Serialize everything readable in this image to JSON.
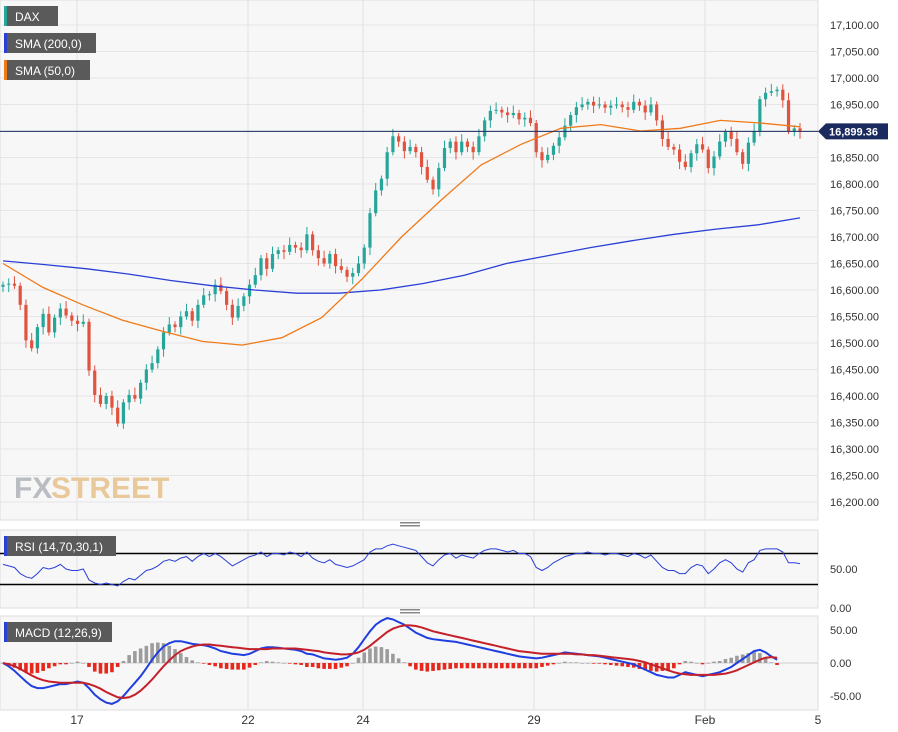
{
  "colors": {
    "bull": "#26a69a",
    "bear": "#e0533f",
    "sma200": "#2a3fd6",
    "sma50": "#f07a18",
    "rsi": "#2a3fd6",
    "macd_line": "#1f3fe0",
    "signal_line": "#c4202a",
    "hist_pos": "#9c9c9c",
    "hist_neg": "#e8261a",
    "last_price_badge": "#1b2a5e",
    "legend_bg": "#5a5a5a"
  },
  "watermark": {
    "fx": "FX",
    "street": "STREET"
  },
  "legends": {
    "price": "DAX",
    "sma200": "SMA (200,0)",
    "sma50": "SMA (50,0)",
    "rsi": "RSI (14,70,30,1)",
    "macd": "MACD (12,26,9)"
  },
  "x_labels": [
    "17",
    "22",
    "24",
    "29",
    "Feb",
    "5"
  ],
  "chart_data": [
    {
      "type": "candlestick",
      "ylim": [
        16150,
        17150
      ],
      "yticks": [
        "17,100.00",
        "17,050.00",
        "17,000.00",
        "16,950.00",
        "16,900.00",
        "16,850.00",
        "16,800.00",
        "16,750.00",
        "16,700.00",
        "16,650.00",
        "16,600.00",
        "16,550.00",
        "16,500.00",
        "16,450.00",
        "16,400.00",
        "16,350.00",
        "16,300.00",
        "16,250.00",
        "16,200.00"
      ],
      "ytick_values": [
        17100,
        17050,
        17000,
        16950,
        16900,
        16850,
        16800,
        16750,
        16700,
        16650,
        16600,
        16550,
        16500,
        16450,
        16400,
        16350,
        16300,
        16250,
        16200
      ],
      "last_price": 16899.36,
      "last_price_label": "16,899.36",
      "close": [
        16610,
        16612,
        16608,
        16572,
        16505,
        16490,
        16530,
        16555,
        16520,
        16548,
        16565,
        16552,
        16542,
        16536,
        16540,
        16448,
        16402,
        16385,
        16400,
        16378,
        16348,
        16388,
        16402,
        16395,
        16425,
        16450,
        16462,
        16488,
        16520,
        16535,
        16530,
        16550,
        16560,
        16542,
        16572,
        16590,
        16592,
        16610,
        16598,
        16572,
        16548,
        16570,
        16588,
        16610,
        16628,
        16660,
        16640,
        16668,
        16675,
        16672,
        16685,
        16680,
        16675,
        16705,
        16675,
        16660,
        16650,
        16668,
        16645,
        16638,
        16625,
        16632,
        16650,
        16680,
        16745,
        16788,
        16810,
        16860,
        16890,
        16880,
        16862,
        16870,
        16860,
        16832,
        16808,
        16790,
        16830,
        16868,
        16880,
        16860,
        16880,
        16870,
        16860,
        16890,
        16920,
        16938,
        16940,
        16935,
        16930,
        16934,
        16922,
        16925,
        16915,
        16860,
        16845,
        16855,
        16872,
        16888,
        16910,
        16930,
        16945,
        16950,
        16955,
        16948,
        16950,
        16944,
        16948,
        16950,
        16945,
        16940,
        16955,
        16948,
        16935,
        16950,
        16920,
        16885,
        16870,
        16865,
        16842,
        16832,
        16858,
        16875,
        16865,
        16830,
        16852,
        16880,
        16898,
        16885,
        16860,
        16838,
        16878,
        16900,
        16960,
        16972,
        16975,
        16978,
        16958,
        16900,
        16905,
        16899.36
      ],
      "sma200": [
        16655,
        16648,
        16640,
        16630,
        16618,
        16608,
        16600,
        16594,
        16594,
        16600,
        16612,
        16628,
        16650,
        16665,
        16680,
        16693,
        16705,
        16715,
        16723,
        16736
      ],
      "sma50": [
        16650,
        16605,
        16572,
        16543,
        16522,
        16503,
        16496,
        16510,
        16548,
        16620,
        16700,
        16770,
        16836,
        16875,
        16905,
        16912,
        16900,
        16905,
        16920,
        16915,
        16908
      ]
    },
    {
      "type": "line",
      "name": "RSI",
      "ylim": [
        0,
        100
      ],
      "yticks": [
        "50.00",
        "0.00"
      ],
      "ytick_values": [
        50,
        0
      ],
      "levels": [
        70,
        30
      ],
      "values": [
        56,
        54,
        52,
        44,
        40,
        38,
        44,
        52,
        50,
        52,
        56,
        50,
        48,
        48,
        50,
        36,
        32,
        30,
        32,
        30,
        28,
        34,
        38,
        36,
        42,
        48,
        50,
        54,
        60,
        62,
        60,
        64,
        66,
        60,
        66,
        70,
        66,
        70,
        66,
        60,
        54,
        58,
        62,
        66,
        68,
        72,
        66,
        70,
        70,
        68,
        72,
        70,
        66,
        72,
        64,
        60,
        58,
        62,
        56,
        54,
        52,
        54,
        58,
        62,
        72,
        76,
        76,
        80,
        82,
        80,
        78,
        76,
        74,
        66,
        58,
        54,
        62,
        68,
        70,
        64,
        68,
        66,
        64,
        70,
        74,
        76,
        76,
        74,
        72,
        74,
        70,
        70,
        66,
        52,
        48,
        52,
        58,
        62,
        66,
        68,
        70,
        70,
        72,
        70,
        70,
        68,
        70,
        70,
        68,
        66,
        70,
        68,
        64,
        68,
        60,
        52,
        48,
        48,
        44,
        44,
        52,
        56,
        54,
        44,
        50,
        58,
        62,
        58,
        50,
        46,
        58,
        62,
        74,
        76,
        76,
        76,
        72,
        58,
        58,
        57
      ]
    },
    {
      "type": "bar+line",
      "name": "MACD",
      "ylim": [
        -75,
        75
      ],
      "yticks": [
        "50.00",
        "0.00",
        "-50.00"
      ],
      "ytick_values": [
        50,
        0,
        -50
      ],
      "macd": [
        0,
        -5,
        -12,
        -20,
        -28,
        -35,
        -38,
        -38,
        -36,
        -34,
        -32,
        -32,
        -30,
        -28,
        -30,
        -38,
        -48,
        -55,
        -60,
        -62,
        -58,
        -50,
        -40,
        -30,
        -20,
        -8,
        5,
        16,
        25,
        30,
        33,
        33,
        31,
        29,
        28,
        27,
        25,
        22,
        18,
        16,
        14,
        13,
        12,
        14,
        18,
        22,
        24,
        24,
        23,
        22,
        21,
        20,
        18,
        14,
        13,
        10,
        7,
        6,
        5,
        6,
        8,
        14,
        24,
        36,
        48,
        58,
        64,
        68,
        66,
        62,
        58,
        52,
        46,
        42,
        38,
        36,
        35,
        34,
        33,
        32,
        30,
        28,
        26,
        24,
        22,
        20,
        18,
        16,
        14,
        12,
        10,
        9,
        8,
        7,
        8,
        10,
        12,
        14,
        16,
        15,
        14,
        13,
        12,
        11,
        10,
        8,
        6,
        4,
        2,
        0,
        -2,
        -6,
        -10,
        -14,
        -18,
        -20,
        -22,
        -22,
        -18,
        -14,
        -16,
        -18,
        -20,
        -18,
        -16,
        -14,
        -10,
        -6,
        0,
        6,
        12,
        18,
        20,
        16,
        10,
        5
      ],
      "signal": [
        0,
        -2,
        -5,
        -9,
        -14,
        -19,
        -23,
        -26,
        -28,
        -29,
        -30,
        -30,
        -30,
        -30,
        -30,
        -32,
        -35,
        -39,
        -44,
        -48,
        -52,
        -53,
        -52,
        -48,
        -42,
        -34,
        -25,
        -15,
        -5,
        4,
        12,
        18,
        22,
        25,
        27,
        28,
        28,
        27,
        26,
        25,
        24,
        23,
        22,
        21,
        21,
        21,
        21,
        22,
        22,
        22,
        22,
        22,
        21,
        20,
        19,
        18,
        16,
        15,
        14,
        13,
        13,
        14,
        16,
        20,
        26,
        33,
        40,
        47,
        52,
        55,
        57,
        57,
        56,
        54,
        51,
        48,
        46,
        44,
        42,
        40,
        38,
        36,
        34,
        32,
        30,
        28,
        26,
        24,
        22,
        20,
        18,
        17,
        16,
        15,
        14,
        14,
        14,
        14,
        14,
        14,
        13,
        13,
        12,
        12,
        11,
        10,
        9,
        8,
        7,
        6,
        5,
        3,
        1,
        -2,
        -5,
        -8,
        -11,
        -14,
        -16,
        -17,
        -18,
        -18,
        -18,
        -18,
        -18,
        -17,
        -16,
        -14,
        -11,
        -7,
        -3,
        1,
        5,
        8,
        9,
        8
      ]
    }
  ]
}
